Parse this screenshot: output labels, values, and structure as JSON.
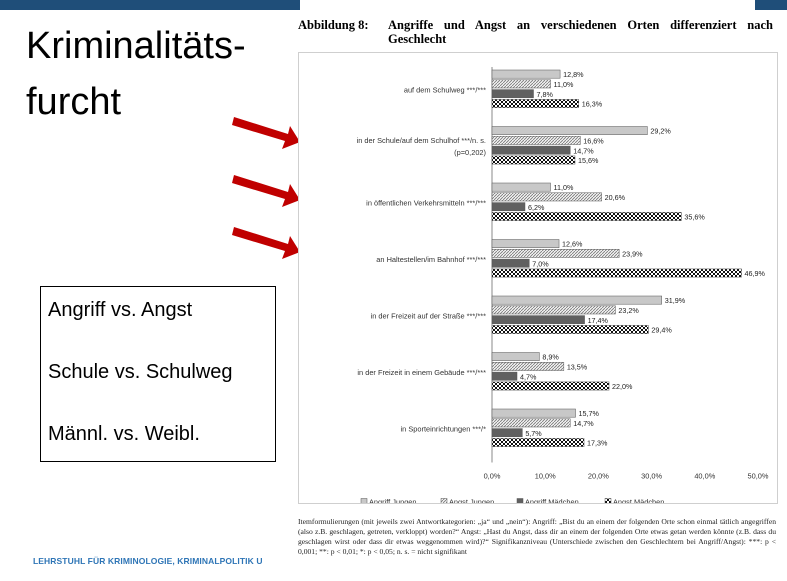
{
  "slide": {
    "title_line1": "Kriminalitäts-",
    "title_line2": "furcht",
    "box_lines": [
      "Angriff vs. Angst",
      "Schule vs. Schulweg",
      "Männl. vs. Weibl."
    ],
    "footer": "LEHRSTUHL FÜR  KRIMINOLOGIE, KRIMINALPOLITIK U",
    "arrow_color": "#c00000"
  },
  "figure": {
    "number": "Abbildung 8:",
    "title": "Angriffe und Angst an verschiedenen Orten differenziert nach Geschlecht",
    "note": "Itemformulierungen (mit jeweils zwei Antwortkategorien: „ja“ und „nein“): Angriff: „Bist du an einem der folgenden Orte schon einmal tätlich angegriffen (also z.B. geschlagen, getreten, verkloppt) worden?“ Angst: „Hast du Angst, dass dir an einem der folgenden Orte etwas getan werden könnte (z.B. dass du geschlagen wirst oder dass dir etwas weggenommen wird)?“ Signifikanzniveau (Unterschiede zwischen den Geschlechtern bei Angriff/Angst): ***: p < 0,001; **: p < 0,01; *: p < 0,05; n. s. = nicht signifikant"
  },
  "chart_data": {
    "type": "bar",
    "orientation": "horizontal",
    "categories": [
      [
        "auf dem Schulweg ***/***"
      ],
      [
        "in der Schule/auf dem Schulhof ***/n. s.",
        "(p=0,202)"
      ],
      [
        "in öffentlichen Verkehrsmitteln ***/***"
      ],
      [
        "an Haltestellen/im Bahnhof ***/***"
      ],
      [
        "in der Freizeit auf der Straße ***/***"
      ],
      [
        "in der Freizeit in einem Gebäude ***/***"
      ],
      [
        "in Sporteinrichtungen ***/*"
      ]
    ],
    "series": [
      {
        "name": "Angriff Jungen",
        "values": [
          12.8,
          29.2,
          11.0,
          12.6,
          31.9,
          8.9,
          15.7
        ],
        "labels": [
          "12,8%",
          "29,2%",
          "11,0%",
          "12,6%",
          "31,9%",
          "8,9%",
          "15,7%"
        ],
        "fill": "#c8c8c8",
        "pattern": "solid"
      },
      {
        "name": "Angst Jungen",
        "values": [
          11.0,
          16.6,
          20.6,
          23.9,
          23.2,
          13.5,
          14.7
        ],
        "labels": [
          "11,0%",
          "16,6%",
          "20,6%",
          "23,9%",
          "23,2%",
          "13,5%",
          "14,7%"
        ],
        "fill": "#e6e6e6",
        "pattern": "hatch"
      },
      {
        "name": "Angriff Mädchen",
        "values": [
          7.8,
          14.7,
          6.2,
          7.0,
          17.4,
          4.7,
          5.7
        ],
        "labels": [
          "7,8%",
          "14,7%",
          "6,2%",
          "7,0%",
          "17,4%",
          "4,7%",
          "5,7%"
        ],
        "fill": "#606060",
        "pattern": "solid"
      },
      {
        "name": "Angst Mädchen",
        "values": [
          16.3,
          15.6,
          35.6,
          46.9,
          29.4,
          22.0,
          17.3
        ],
        "labels": [
          "16,3%",
          "15,6%",
          "35,6%",
          "46,9%",
          "29,4%",
          "22,0%",
          "17,3%"
        ],
        "fill": "#111111",
        "pattern": "check"
      }
    ],
    "xlim": [
      0,
      50
    ],
    "ticks": [
      "0,0%",
      "10,0%",
      "20,0%",
      "30,0%",
      "40,0%",
      "50,0%"
    ],
    "legend_position": "bottom",
    "grid": false
  }
}
